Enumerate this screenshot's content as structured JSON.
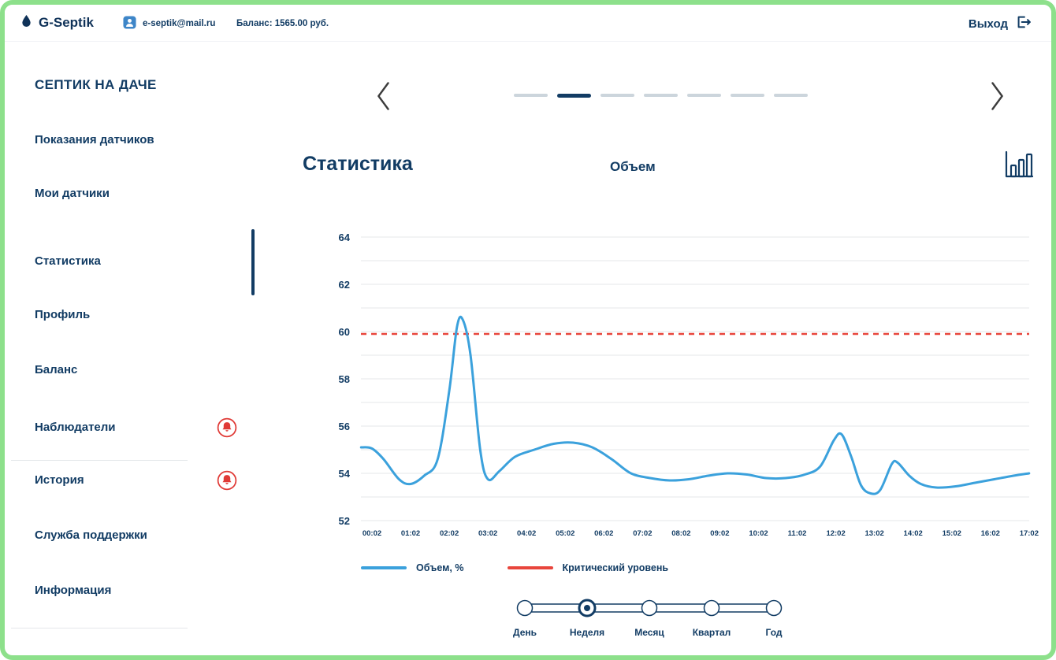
{
  "topbar": {
    "brand": "G-Septik",
    "email": "e-septik@mail.ru",
    "balance_label": "Баланс: 1565.00 руб.",
    "logout_label": "Выход"
  },
  "sidebar": {
    "title": "СЕПТИК НА ДАЧЕ",
    "items": [
      {
        "label": "Показания датчиков",
        "active": false,
        "alert": false
      },
      {
        "label": "Мои датчики",
        "active": false,
        "alert": false
      },
      {
        "label": "Статистика",
        "active": true,
        "alert": false
      },
      {
        "label": "Профиль",
        "active": false,
        "alert": false
      },
      {
        "label": "Баланс",
        "active": false,
        "alert": false
      },
      {
        "label": "Наблюдатели",
        "active": false,
        "alert": true
      },
      {
        "label": "История",
        "active": false,
        "alert": true
      },
      {
        "label": "Служба поддержки",
        "active": false,
        "alert": false
      },
      {
        "label": "Информация",
        "active": false,
        "alert": false
      }
    ]
  },
  "carousel": {
    "dash_count": 7,
    "active_index": 1
  },
  "main": {
    "title": "Статистика",
    "subtitle": "Объем"
  },
  "chart_data": {
    "type": "line",
    "title": "Объем",
    "xlabel": "",
    "ylabel": "",
    "grid": true,
    "legend_position": "bottom",
    "ylim": [
      51.5,
      64.5
    ],
    "yticks": [
      52,
      54,
      56,
      58,
      60,
      62,
      64
    ],
    "x_tick_labels": [
      "00:02",
      "01:02",
      "02:02",
      "03:02",
      "04:02",
      "05:02",
      "06:02",
      "07:02",
      "08:02",
      "09:02",
      "10:02",
      "11:02",
      "12:02",
      "13:02",
      "14:02",
      "15:02",
      "16:02",
      "17:02"
    ],
    "critical_level": 59.9,
    "series": [
      {
        "name": "Объем, %",
        "color": "#3BA1DC",
        "points": [
          [
            -0.28,
            55.1
          ],
          [
            0,
            55.05
          ],
          [
            0.3,
            54.6
          ],
          [
            0.7,
            53.75
          ],
          [
            1.0,
            53.55
          ],
          [
            1.35,
            53.9
          ],
          [
            1.7,
            54.6
          ],
          [
            2.0,
            57.5
          ],
          [
            2.2,
            60.2
          ],
          [
            2.35,
            60.5
          ],
          [
            2.55,
            59.0
          ],
          [
            2.8,
            55.0
          ],
          [
            3.0,
            53.75
          ],
          [
            3.3,
            54.1
          ],
          [
            3.7,
            54.7
          ],
          [
            4.2,
            55.0
          ],
          [
            4.7,
            55.25
          ],
          [
            5.2,
            55.3
          ],
          [
            5.7,
            55.1
          ],
          [
            6.2,
            54.6
          ],
          [
            6.7,
            54.0
          ],
          [
            7.2,
            53.8
          ],
          [
            7.7,
            53.7
          ],
          [
            8.2,
            53.75
          ],
          [
            8.7,
            53.9
          ],
          [
            9.2,
            54.0
          ],
          [
            9.7,
            53.95
          ],
          [
            10.2,
            53.8
          ],
          [
            10.7,
            53.8
          ],
          [
            11.2,
            53.95
          ],
          [
            11.6,
            54.3
          ],
          [
            11.95,
            55.4
          ],
          [
            12.15,
            55.65
          ],
          [
            12.4,
            54.7
          ],
          [
            12.65,
            53.5
          ],
          [
            12.9,
            53.15
          ],
          [
            13.15,
            53.3
          ],
          [
            13.45,
            54.4
          ],
          [
            13.6,
            54.45
          ],
          [
            13.9,
            53.9
          ],
          [
            14.2,
            53.55
          ],
          [
            14.6,
            53.4
          ],
          [
            15.1,
            53.45
          ],
          [
            15.6,
            53.6
          ],
          [
            16.1,
            53.75
          ],
          [
            16.6,
            53.9
          ],
          [
            17.0,
            54.0
          ]
        ]
      },
      {
        "name": "Критический уровень",
        "color": "#E8453C",
        "style": "dashed",
        "value": 59.9
      }
    ]
  },
  "range_slider": {
    "options": [
      "День",
      "Неделя",
      "Месяц",
      "Квартал",
      "Год"
    ],
    "selected": "Неделя",
    "selected_index": 1
  }
}
